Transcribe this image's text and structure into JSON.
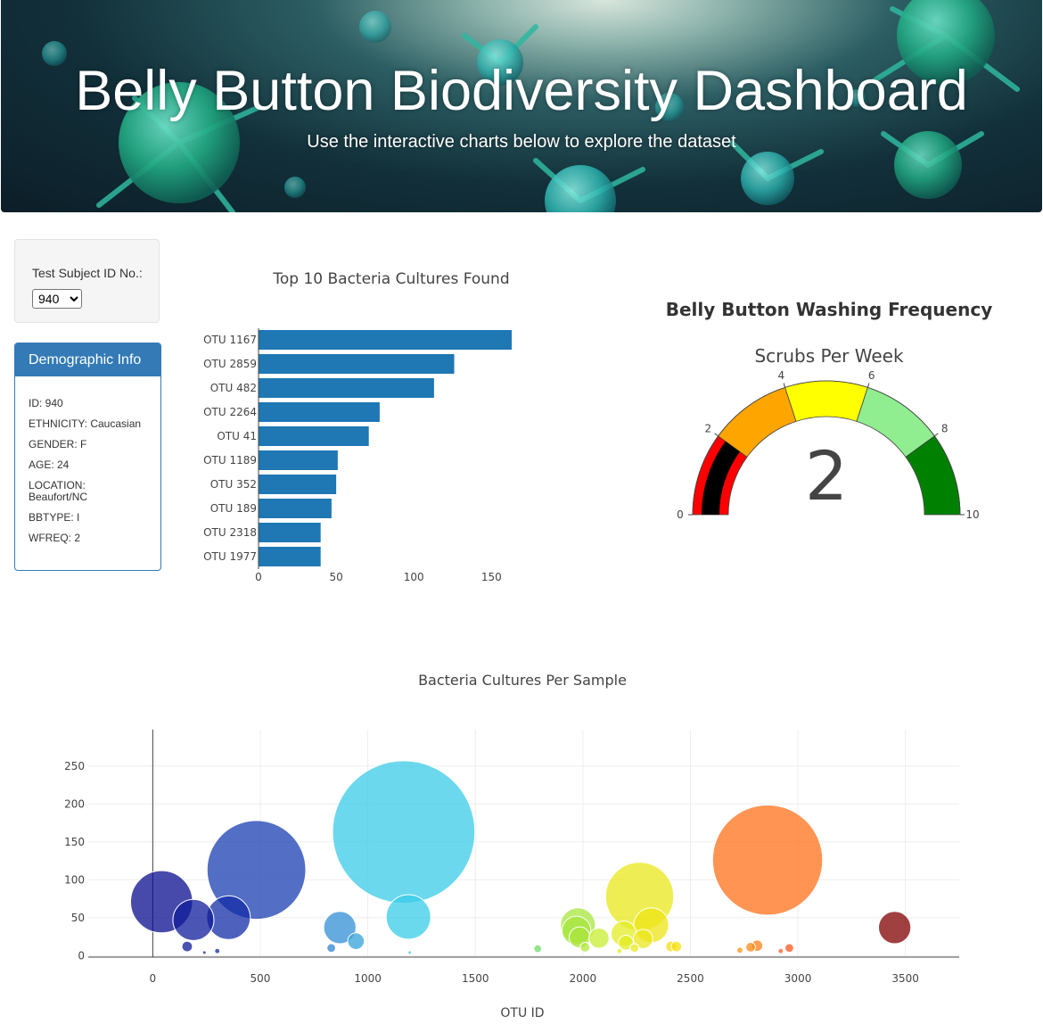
{
  "header": {
    "title": "Belly Button Biodiversity Dashboard",
    "subtitle": "Use the interactive charts below to explore the dataset"
  },
  "selector": {
    "label": "Test Subject ID No.:",
    "selected": "940"
  },
  "demographics": {
    "heading": "Demographic Info",
    "rows": [
      "ID: 940",
      "ETHNICITY: Caucasian",
      "GENDER: F",
      "AGE: 24",
      "LOCATION: Beaufort/NC",
      "BBTYPE: I",
      "WFREQ: 2"
    ]
  },
  "gauge": {
    "title": "Belly Button Washing Frequency",
    "subtitle": "Scrubs Per Week",
    "value": 2,
    "value_label": "2",
    "range": [
      0,
      10
    ],
    "ticks": [
      "0",
      "2",
      "4",
      "6",
      "8",
      "10"
    ],
    "bands": [
      {
        "from": 0,
        "to": 2,
        "color": "#ff0000"
      },
      {
        "from": 2,
        "to": 4,
        "color": "#ffa500"
      },
      {
        "from": 4,
        "to": 6,
        "color": "#ffff00"
      },
      {
        "from": 6,
        "to": 8,
        "color": "#90ee90"
      },
      {
        "from": 8,
        "to": 10,
        "color": "#008000"
      }
    ],
    "bar_color": "#000000"
  },
  "chart_data": [
    {
      "type": "bar",
      "orientation": "horizontal",
      "title": "Top 10 Bacteria Cultures Found",
      "categories": [
        "OTU 1167",
        "OTU 2859",
        "OTU 482",
        "OTU 2264",
        "OTU 41",
        "OTU 1189",
        "OTU 352",
        "OTU 189",
        "OTU 2318",
        "OTU 1977"
      ],
      "values": [
        163,
        126,
        113,
        78,
        71,
        51,
        50,
        47,
        40,
        40
      ],
      "xlim": [
        0,
        163
      ],
      "xticks": [
        "0",
        "50",
        "100",
        "150"
      ],
      "color": "#1f77b4"
    },
    {
      "type": "scatter",
      "title": "Bacteria Cultures Per Sample",
      "xlabel": "OTU ID",
      "xlim": [
        -300,
        3750
      ],
      "ylim": [
        -2,
        298
      ],
      "xticks": [
        "0",
        "500",
        "1000",
        "1500",
        "2000",
        "2500",
        "3000",
        "3500"
      ],
      "yticks": [
        "0",
        "50",
        "100",
        "150",
        "200",
        "250"
      ],
      "points": [
        {
          "x": 41,
          "y": 71
        },
        {
          "x": 160,
          "y": 12
        },
        {
          "x": 189,
          "y": 47
        },
        {
          "x": 240,
          "y": 4
        },
        {
          "x": 300,
          "y": 6
        },
        {
          "x": 352,
          "y": 50
        },
        {
          "x": 482,
          "y": 113
        },
        {
          "x": 830,
          "y": 10
        },
        {
          "x": 870,
          "y": 37
        },
        {
          "x": 945,
          "y": 19
        },
        {
          "x": 1167,
          "y": 163
        },
        {
          "x": 1189,
          "y": 51
        },
        {
          "x": 1195,
          "y": 4
        },
        {
          "x": 1790,
          "y": 9
        },
        {
          "x": 1970,
          "y": 33
        },
        {
          "x": 1977,
          "y": 40
        },
        {
          "x": 1985,
          "y": 24
        },
        {
          "x": 2010,
          "y": 11
        },
        {
          "x": 2075,
          "y": 23
        },
        {
          "x": 2170,
          "y": 6
        },
        {
          "x": 2190,
          "y": 29
        },
        {
          "x": 2200,
          "y": 17
        },
        {
          "x": 2240,
          "y": 10
        },
        {
          "x": 2264,
          "y": 78
        },
        {
          "x": 2280,
          "y": 22
        },
        {
          "x": 2318,
          "y": 40
        },
        {
          "x": 2410,
          "y": 12
        },
        {
          "x": 2435,
          "y": 12
        },
        {
          "x": 2730,
          "y": 7
        },
        {
          "x": 2780,
          "y": 11
        },
        {
          "x": 2810,
          "y": 13
        },
        {
          "x": 2859,
          "y": 126
        },
        {
          "x": 2920,
          "y": 6
        },
        {
          "x": 2960,
          "y": 10
        },
        {
          "x": 3450,
          "y": 37
        }
      ]
    }
  ]
}
